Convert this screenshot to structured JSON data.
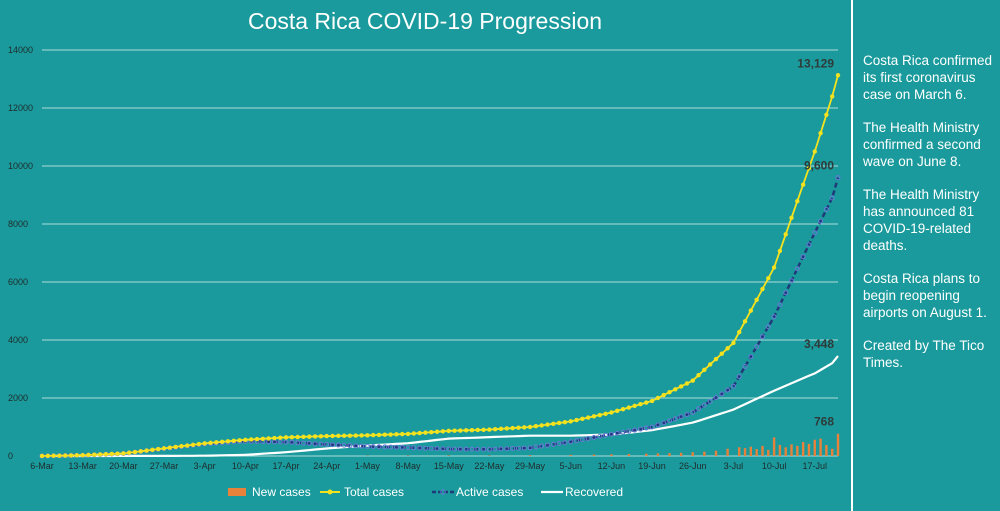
{
  "colors": {
    "background": "#1a9a9c",
    "grid": "#dff2f2",
    "new_cases": "#e8823a",
    "total_cases": "#f5e21e",
    "active_cases": "#1f3a78",
    "active_marker": "#6a7ad8",
    "recovered": "#ffffff"
  },
  "chart_data": {
    "type": "line",
    "title": "Costa Rica COVID-19 Progression",
    "xlabel": "",
    "ylabel": "",
    "ylim": [
      0,
      14000
    ],
    "yticks": [
      "0",
      "2000",
      "4000",
      "6000",
      "8000",
      "10000",
      "12000",
      "14000"
    ],
    "xlim": [
      0,
      137
    ],
    "xticks": [
      {
        "day": 0,
        "label": "6-Mar"
      },
      {
        "day": 7,
        "label": "13-Mar"
      },
      {
        "day": 14,
        "label": "20-Mar"
      },
      {
        "day": 21,
        "label": "27-Mar"
      },
      {
        "day": 28,
        "label": "3-Apr"
      },
      {
        "day": 35,
        "label": "10-Apr"
      },
      {
        "day": 42,
        "label": "17-Apr"
      },
      {
        "day": 49,
        "label": "24-Apr"
      },
      {
        "day": 56,
        "label": "1-May"
      },
      {
        "day": 63,
        "label": "8-May"
      },
      {
        "day": 70,
        "label": "15-May"
      },
      {
        "day": 77,
        "label": "22-May"
      },
      {
        "day": 84,
        "label": "29-May"
      },
      {
        "day": 91,
        "label": "5-Jun"
      },
      {
        "day": 98,
        "label": "12-Jun"
      },
      {
        "day": 105,
        "label": "19-Jun"
      },
      {
        "day": 112,
        "label": "26-Jun"
      },
      {
        "day": 119,
        "label": "3-Jul"
      },
      {
        "day": 126,
        "label": "10-Jul"
      },
      {
        "day": 133,
        "label": "17-Jul"
      }
    ],
    "series": [
      {
        "name": "Total cases",
        "kind": "line-marker",
        "points": [
          [
            0,
            1
          ],
          [
            7,
            27
          ],
          [
            14,
            87
          ],
          [
            21,
            263
          ],
          [
            28,
            435
          ],
          [
            35,
            558
          ],
          [
            42,
            642
          ],
          [
            49,
            687
          ],
          [
            56,
            713
          ],
          [
            63,
            761
          ],
          [
            70,
            866
          ],
          [
            77,
            911
          ],
          [
            84,
            1000
          ],
          [
            91,
            1194
          ],
          [
            98,
            1500
          ],
          [
            105,
            1900
          ],
          [
            112,
            2600
          ],
          [
            119,
            3900
          ],
          [
            126,
            6500
          ],
          [
            133,
            10500
          ],
          [
            136,
            12400
          ],
          [
            137,
            13129
          ]
        ]
      },
      {
        "name": "Active cases",
        "kind": "dashed-marker",
        "points": [
          [
            0,
            1
          ],
          [
            7,
            27
          ],
          [
            14,
            85
          ],
          [
            21,
            255
          ],
          [
            28,
            420
          ],
          [
            35,
            510
          ],
          [
            42,
            480
          ],
          [
            49,
            400
          ],
          [
            56,
            330
          ],
          [
            63,
            290
          ],
          [
            70,
            240
          ],
          [
            77,
            230
          ],
          [
            84,
            280
          ],
          [
            91,
            490
          ],
          [
            98,
            750
          ],
          [
            105,
            1000
          ],
          [
            112,
            1500
          ],
          [
            119,
            2400
          ],
          [
            126,
            4800
          ],
          [
            133,
            7700
          ],
          [
            136,
            8900
          ],
          [
            137,
            9600
          ]
        ]
      },
      {
        "name": "Recovered",
        "kind": "line",
        "points": [
          [
            0,
            0
          ],
          [
            21,
            3
          ],
          [
            28,
            10
          ],
          [
            35,
            40
          ],
          [
            42,
            130
          ],
          [
            49,
            260
          ],
          [
            56,
            360
          ],
          [
            63,
            440
          ],
          [
            70,
            600
          ],
          [
            77,
            650
          ],
          [
            84,
            700
          ],
          [
            91,
            700
          ],
          [
            98,
            740
          ],
          [
            105,
            890
          ],
          [
            112,
            1150
          ],
          [
            119,
            1600
          ],
          [
            126,
            2250
          ],
          [
            133,
            2850
          ],
          [
            136,
            3200
          ],
          [
            137,
            3448
          ]
        ]
      },
      {
        "name": "New cases",
        "kind": "bar",
        "points": [
          [
            56,
            10
          ],
          [
            63,
            15
          ],
          [
            70,
            20
          ],
          [
            77,
            15
          ],
          [
            84,
            30
          ],
          [
            91,
            40
          ],
          [
            95,
            50
          ],
          [
            98,
            60
          ],
          [
            101,
            70
          ],
          [
            104,
            80
          ],
          [
            106,
            90
          ],
          [
            108,
            100
          ],
          [
            110,
            110
          ],
          [
            112,
            130
          ],
          [
            114,
            150
          ],
          [
            116,
            180
          ],
          [
            118,
            250
          ],
          [
            120,
            300
          ],
          [
            121,
            270
          ],
          [
            122,
            320
          ],
          [
            123,
            240
          ],
          [
            124,
            350
          ],
          [
            125,
            210
          ],
          [
            126,
            640
          ],
          [
            127,
            380
          ],
          [
            128,
            300
          ],
          [
            129,
            400
          ],
          [
            130,
            350
          ],
          [
            131,
            480
          ],
          [
            132,
            420
          ],
          [
            133,
            560
          ],
          [
            134,
            600
          ],
          [
            135,
            380
          ],
          [
            136,
            250
          ],
          [
            137,
            768
          ]
        ]
      }
    ],
    "end_labels": [
      {
        "series": "Total cases",
        "text": "13,129"
      },
      {
        "series": "Active cases",
        "text": "9,600"
      },
      {
        "series": "Recovered",
        "text": "3,448"
      },
      {
        "series": "New cases",
        "text": "768"
      }
    ],
    "legend": {
      "position": "bottom",
      "entries": [
        "New cases",
        "Total cases",
        "Active cases",
        "Recovered"
      ]
    }
  },
  "notes": [
    "Costa Rica confirmed its first coronavirus case on March 6.",
    "The Health Ministry confirmed a second wave on June 8.",
    "The Health Ministry has announced 81 COVID-19-related deaths.",
    "Costa Rica plans to begin reopening airports on August 1.",
    "Created by The Tico Times."
  ]
}
